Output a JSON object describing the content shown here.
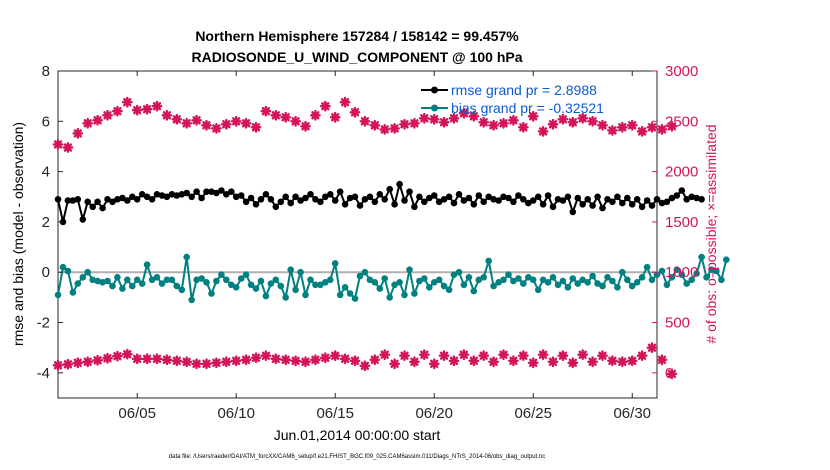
{
  "chart_data": {
    "type": "line",
    "title_line1": "Northern Hemisphere 157284 / 158142 = 99.457%",
    "title_line2": "RADIOSONDE_U_WIND_COMPONENT @ 100 hPa",
    "xlabel": "Jun.01,2014 00:00:00 start",
    "ylabel_left": "rmse and bias (model - observation)",
    "ylabel_right": "# of obs: o=possible; ×=assimilated",
    "footnote": "data file: /Users/raeder/DAI/ATM_forcXX/CAM6_setup/f.e21.FHIST_BGC.f09_025.CAM6assim.011/Diags_NTrS_2014-06/obs_diag_output.nc",
    "xlim": [
      1.0,
      31.25
    ],
    "ylim_left": [
      -5,
      8
    ],
    "ylim_right": [
      -250,
      3000
    ],
    "x_ticks": [
      5,
      10,
      15,
      20,
      25,
      30
    ],
    "x_tick_labels": [
      "06/05",
      "06/10",
      "06/15",
      "06/20",
      "06/25",
      "06/30"
    ],
    "y_left_ticks": [
      -4,
      -2,
      0,
      2,
      4,
      6,
      8
    ],
    "y_left_tick_labels": [
      "-4",
      "-2",
      "0",
      "2",
      "4",
      "6",
      "8"
    ],
    "y_right_ticks": [
      0,
      500,
      1000,
      1500,
      2000,
      2500,
      3000
    ],
    "y_right_tick_labels": [
      "0",
      "500",
      "1000",
      "1500",
      "2000",
      "2500",
      "3000"
    ],
    "zero_line": 0,
    "x_start": 1.0,
    "x_step": 0.25,
    "series": [
      {
        "name": "rmse",
        "legend": "rmse grand pr = 2.8988",
        "color": "#000000",
        "axis": "left",
        "values": [
          2.9,
          2.0,
          2.85,
          2.85,
          2.9,
          2.1,
          2.8,
          2.6,
          2.8,
          2.55,
          2.9,
          2.8,
          2.9,
          2.95,
          2.85,
          3.0,
          2.9,
          3.1,
          3.0,
          2.9,
          3.1,
          3.05,
          3.0,
          3.1,
          3.05,
          3.1,
          3.15,
          3.0,
          3.2,
          2.95,
          3.2,
          3.2,
          3.15,
          3.25,
          3.1,
          3.2,
          3.0,
          3.05,
          2.8,
          2.95,
          2.7,
          2.9,
          3.1,
          2.9,
          2.6,
          2.8,
          3.0,
          2.75,
          3.0,
          2.85,
          2.95,
          3.1,
          2.9,
          2.8,
          3.0,
          3.1,
          2.85,
          3.2,
          2.7,
          2.95,
          3.0,
          2.65,
          2.9,
          3.0,
          2.8,
          3.1,
          2.9,
          3.3,
          2.7,
          3.5,
          2.85,
          3.2,
          2.6,
          3.0,
          2.8,
          2.95,
          3.05,
          2.8,
          2.9,
          3.0,
          2.75,
          3.1,
          2.85,
          2.95,
          2.7,
          3.05,
          2.8,
          3.0,
          2.9,
          2.85,
          3.0,
          2.95,
          2.8,
          3.05,
          2.9,
          2.75,
          2.85,
          3.0,
          2.7,
          3.05,
          2.6,
          2.9,
          2.85,
          3.0,
          2.4,
          2.95,
          2.7,
          2.9,
          2.65,
          3.0,
          2.55,
          2.9,
          2.8,
          3.0,
          2.75,
          2.95,
          2.7,
          2.9,
          2.6,
          2.85,
          2.65,
          2.9,
          2.75,
          2.8,
          2.95,
          3.05,
          3.25,
          2.9,
          3.0,
          2.95,
          2.9
        ],
        "marker": "filled-circle"
      },
      {
        "name": "bias",
        "legend": "bias grand pr = -0.32521",
        "color": "#008080",
        "axis": "left",
        "values": [
          -0.9,
          0.2,
          0.05,
          -0.8,
          -0.45,
          -0.2,
          0.0,
          -0.3,
          -0.35,
          -0.4,
          -0.35,
          -0.55,
          -0.2,
          -0.65,
          -0.3,
          -0.55,
          -0.3,
          -0.45,
          0.3,
          -0.3,
          -0.2,
          -0.45,
          -0.3,
          -0.3,
          -0.55,
          -0.7,
          0.6,
          -1.1,
          -0.3,
          -0.25,
          -0.4,
          -0.85,
          -0.35,
          -0.1,
          -0.3,
          -0.5,
          -0.6,
          -0.25,
          -0.1,
          -0.5,
          -0.65,
          -0.35,
          -0.95,
          -0.45,
          -0.3,
          -0.55,
          -1.0,
          0.1,
          -0.7,
          0.0,
          -0.9,
          -0.3,
          -0.5,
          -0.5,
          -0.4,
          -0.3,
          0.35,
          -0.9,
          -0.6,
          -0.85,
          -1.05,
          -0.15,
          0.0,
          -0.3,
          -0.4,
          -0.65,
          -0.25,
          -1.0,
          -0.5,
          -0.4,
          -0.9,
          0.1,
          -0.85,
          -0.35,
          -0.25,
          -0.6,
          -0.4,
          -0.3,
          -0.55,
          -0.7,
          -0.1,
          0.0,
          -0.5,
          -0.2,
          -0.75,
          -0.3,
          -0.2,
          0.45,
          -0.55,
          -0.4,
          -0.3,
          -0.1,
          -0.35,
          -0.25,
          -0.45,
          -0.2,
          -0.3,
          -0.7,
          -0.3,
          -0.4,
          -0.2,
          -0.5,
          -0.35,
          -0.6,
          -0.25,
          -0.45,
          -0.3,
          -0.4,
          -0.15,
          -0.45,
          -0.55,
          -0.2,
          -0.35,
          -0.6,
          0.0,
          -0.3,
          -0.55,
          -0.4,
          -0.2,
          0.2,
          -0.3,
          -0.1,
          0.05,
          -0.5,
          -0.2,
          0.1,
          -0.1,
          -0.45,
          -0.3,
          -0.05,
          0.6,
          -0.2,
          0.1,
          0.05,
          -0.3,
          0.5
        ],
        "marker": "filled-circle"
      },
      {
        "name": "possible",
        "legend": "",
        "color": "#d4145a",
        "axis": "right",
        "x_step": 0.5,
        "values": [
          2270,
          2240,
          2380,
          2480,
          2510,
          2560,
          2600,
          2690,
          2610,
          2620,
          2650,
          2560,
          2520,
          2480,
          2510,
          2460,
          2430,
          2470,
          2500,
          2480,
          2440,
          2600,
          2560,
          2540,
          2500,
          2450,
          2560,
          2650,
          2540,
          2690,
          2590,
          2500,
          2460,
          2420,
          2430,
          2470,
          2480,
          2530,
          2520,
          2490,
          2530,
          2580,
          2550,
          2490,
          2460,
          2480,
          2510,
          2440,
          2550,
          2400,
          2470,
          2520,
          2490,
          2530,
          2500,
          2460,
          2410,
          2440,
          2460,
          2400,
          2440,
          2420,
          2450
        ],
        "marker": "asterisk"
      },
      {
        "name": "assimilated",
        "legend": "",
        "color": "#d4145a",
        "axis": "right",
        "x_step": 0.5,
        "values": [
          75,
          85,
          100,
          110,
          125,
          145,
          165,
          185,
          140,
          140,
          140,
          130,
          120,
          110,
          90,
          90,
          100,
          110,
          120,
          130,
          150,
          170,
          140,
          130,
          120,
          110,
          130,
          150,
          170,
          140,
          120,
          70,
          130,
          180,
          90,
          170,
          110,
          180,
          90,
          170,
          120,
          180,
          120,
          170,
          110,
          180,
          120,
          170,
          100,
          180,
          110,
          170,
          100,
          180,
          110,
          170,
          120,
          110,
          120,
          170,
          250,
          130,
          -10
        ],
        "marker": "asterisk"
      }
    ]
  }
}
